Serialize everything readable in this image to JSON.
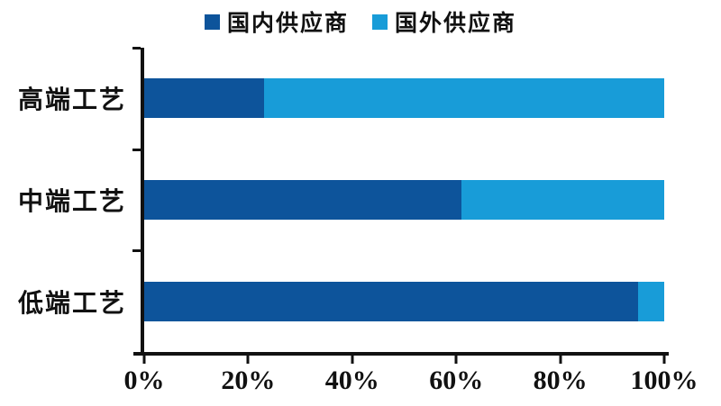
{
  "chart_data": {
    "type": "bar",
    "orientation": "horizontal",
    "stacked": true,
    "unit": "percent",
    "categories": [
      "高端工艺",
      "中端工艺",
      "低端工艺"
    ],
    "series": [
      {
        "name": "国内供应商",
        "color": "#0d549b",
        "values": [
          23,
          61,
          95
        ]
      },
      {
        "name": "国外供应商",
        "color": "#189cd8",
        "values": [
          77,
          39,
          5
        ]
      }
    ],
    "x_ticks": [
      "0%",
      "20%",
      "40%",
      "60%",
      "80%",
      "100%"
    ],
    "xlim": [
      0,
      100
    ],
    "legend_position": "top",
    "grid": false,
    "axis_color": "#111111",
    "background": "#ffffff"
  }
}
